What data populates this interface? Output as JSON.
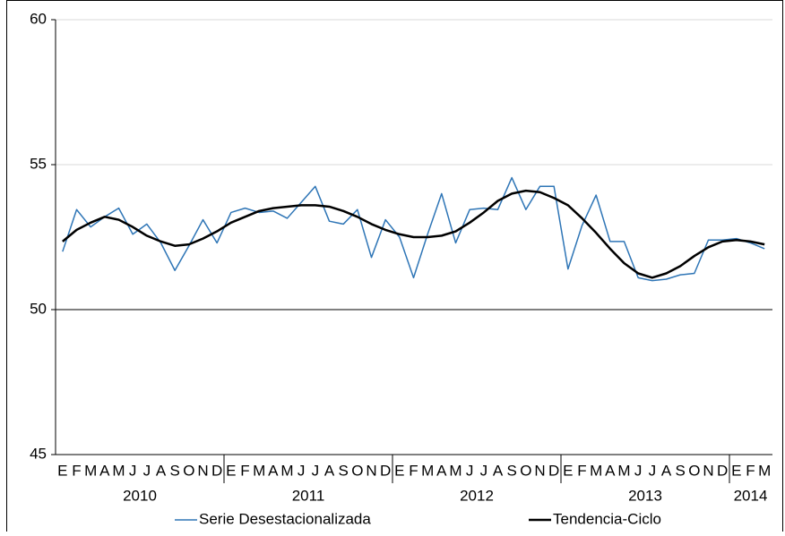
{
  "chart_data": {
    "type": "line",
    "categories": [
      "E",
      "F",
      "M",
      "A",
      "M",
      "J",
      "J",
      "A",
      "S",
      "O",
      "N",
      "D",
      "E",
      "F",
      "M",
      "A",
      "M",
      "J",
      "J",
      "A",
      "S",
      "O",
      "N",
      "D",
      "E",
      "F",
      "M",
      "A",
      "M",
      "J",
      "J",
      "A",
      "S",
      "O",
      "N",
      "D",
      "E",
      "F",
      "M",
      "A",
      "M",
      "J",
      "J",
      "A",
      "S",
      "O",
      "N",
      "D",
      "E",
      "F",
      "M"
    ],
    "years": [
      "2010",
      "2011",
      "2012",
      "2013",
      "2014"
    ],
    "series": [
      {
        "name": "Serie Desestacionalizada",
        "color": "#2e75b6",
        "width": 1.5,
        "values": [
          52.0,
          53.45,
          52.85,
          53.2,
          53.5,
          52.6,
          52.95,
          52.3,
          51.35,
          52.2,
          53.1,
          52.3,
          53.35,
          53.5,
          53.35,
          53.4,
          53.15,
          53.7,
          54.25,
          53.05,
          52.95,
          53.45,
          51.8,
          53.1,
          52.5,
          51.1,
          52.6,
          54.0,
          52.3,
          53.45,
          53.5,
          53.45,
          54.55,
          53.45,
          54.25,
          54.25,
          51.4,
          52.9,
          53.95,
          52.35,
          52.35,
          51.1,
          51.0,
          51.05,
          51.2,
          51.25,
          52.4,
          52.4,
          52.45,
          52.3,
          52.1
        ]
      },
      {
        "name": "Tendencia-Ciclo",
        "color": "#000000",
        "width": 2.5,
        "values": [
          52.35,
          52.75,
          53.0,
          53.2,
          53.1,
          52.85,
          52.55,
          52.35,
          52.2,
          52.25,
          52.45,
          52.7,
          53.0,
          53.2,
          53.4,
          53.5,
          53.55,
          53.6,
          53.6,
          53.55,
          53.4,
          53.2,
          52.95,
          52.75,
          52.6,
          52.5,
          52.5,
          52.55,
          52.7,
          53.0,
          53.35,
          53.75,
          54.0,
          54.1,
          54.05,
          53.85,
          53.6,
          53.15,
          52.65,
          52.1,
          51.6,
          51.25,
          51.1,
          51.25,
          51.5,
          51.85,
          52.15,
          52.35,
          52.4,
          52.35,
          52.25
        ]
      }
    ],
    "ylim": [
      45,
      60
    ],
    "yticks": [
      45,
      50,
      55,
      60
    ],
    "grid": true,
    "baseline": 50,
    "legend": "bottom"
  }
}
